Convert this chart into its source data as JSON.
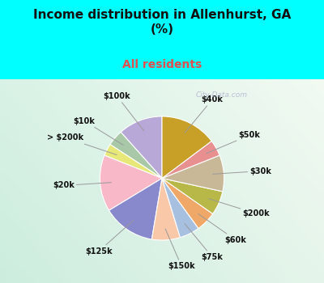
{
  "title": "Income distribution in Allenhurst, GA\n(%)",
  "subtitle": "All residents",
  "title_color": "#111111",
  "subtitle_color": "#e05050",
  "bg_cyan": "#00ffff",
  "bg_chart_colors": [
    "#f0fff0",
    "#d0f0e8"
  ],
  "labels": [
    "$100k",
    "$10k",
    "> $200k",
    "$20k",
    "$125k",
    "$150k",
    "$75k",
    "$60k",
    "$200k",
    "$30k",
    "$50k",
    "$40k"
  ],
  "values": [
    11,
    4,
    3,
    14,
    13,
    7,
    5,
    5,
    6,
    9,
    4,
    14
  ],
  "colors": [
    "#b8a8d8",
    "#a8c8a8",
    "#e8e878",
    "#f8b8c8",
    "#8888cc",
    "#f8c8a8",
    "#a8c0e0",
    "#f0a868",
    "#b8b848",
    "#c8b898",
    "#e89090",
    "#c8a028"
  ],
  "startangle": 90,
  "label_fontsize": 7.0,
  "watermark": "City-Data.com"
}
